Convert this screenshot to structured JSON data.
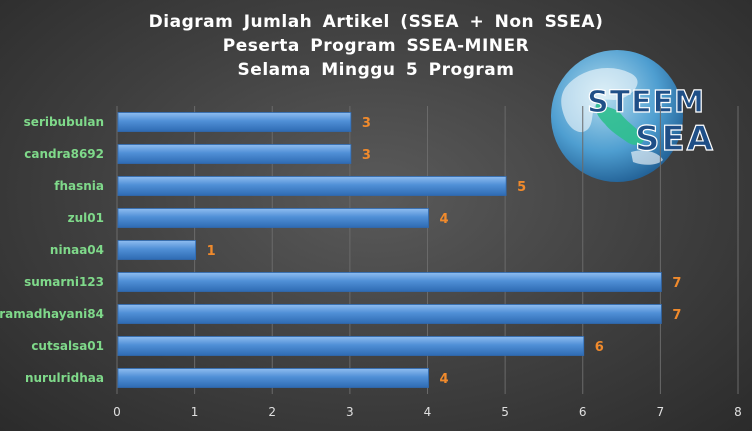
{
  "title_lines": [
    "Diagram Jumlah Artikel (SSEA + Non SSEA)",
    "Peserta Program SSEA-MINER",
    "Selama Minggu 5 Program"
  ],
  "logo": {
    "line1": "STEEM",
    "line2": "SEA"
  },
  "colors": {
    "bar": "#4f8fd6",
    "bar_light": "#8fbdf0",
    "bar_dark": "#2f6bb3",
    "category_label": "#7fd98a",
    "value_label": "#f08a2c",
    "tick": "#e0e0e0",
    "grid": "#6a6a6a"
  },
  "chart_data": {
    "type": "bar",
    "orientation": "horizontal",
    "title": "Diagram Jumlah Artikel (SSEA + Non SSEA) Peserta Program SSEA-MINER Selama Minggu 5 Program",
    "categories": [
      "seribubulan",
      "candra8692",
      "fhasnia",
      "zul01",
      "ninaa04",
      "sumarni123",
      "ramadhayani84",
      "cutsalsa01",
      "nurulridhaa"
    ],
    "values": [
      3,
      3,
      5,
      4,
      1,
      7,
      7,
      6,
      4
    ],
    "xlim": [
      0,
      8
    ],
    "xticks": [
      0,
      1,
      2,
      3,
      4,
      5,
      6,
      7,
      8
    ],
    "grid": true,
    "data_labels": true
  }
}
